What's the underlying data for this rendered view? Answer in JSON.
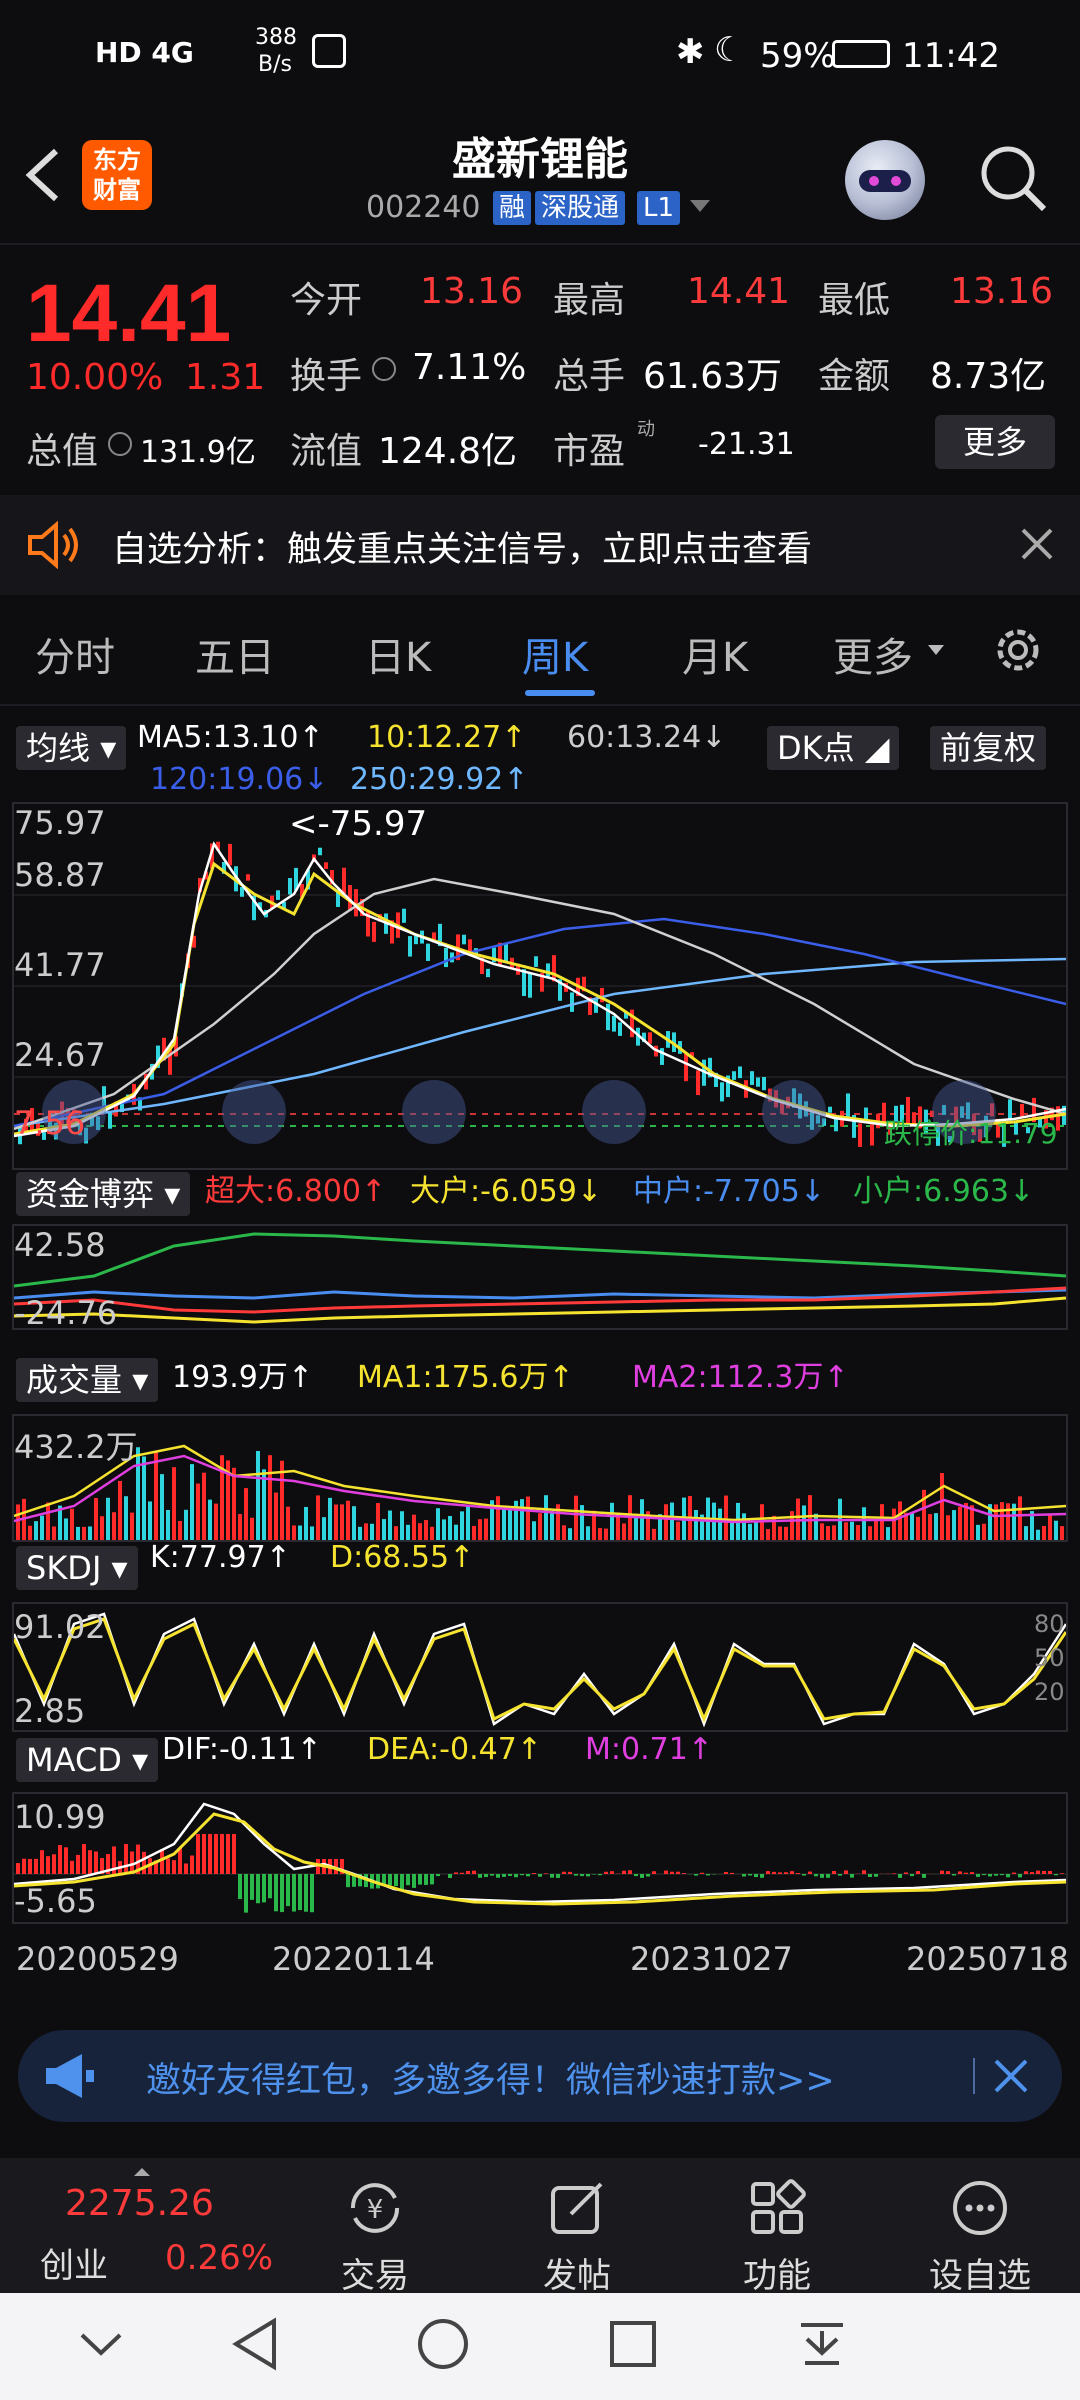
{
  "status_bar": {
    "left_icons": "HD 4G",
    "net_speed": "388",
    "net_unit": "B/s",
    "battery": "59%",
    "time": "11:42"
  },
  "header": {
    "logo_line1": "东方",
    "logo_line2": "财富",
    "stock_name": "盛新锂能",
    "stock_code": "002240",
    "tags": [
      "融",
      "深股通",
      "L1"
    ]
  },
  "quote": {
    "price": "14.41",
    "change_pct": "10.00%",
    "change_abs": "1.31",
    "row1": [
      {
        "label": "今开",
        "value": "13.16"
      },
      {
        "label": "最高",
        "value": "14.41"
      },
      {
        "label": "最低",
        "value": "13.16"
      }
    ],
    "row2": [
      {
        "label": "换手",
        "value": "7.11%"
      },
      {
        "label": "总手",
        "value": "61.63万"
      },
      {
        "label": "金额",
        "value": "8.73亿"
      }
    ],
    "row3": [
      {
        "label": "总值",
        "value": "131.9亿"
      },
      {
        "label": "流值",
        "value": "124.8亿"
      },
      {
        "label": "市盈",
        "value": "-21.31"
      }
    ],
    "pe_superscript": "动",
    "more_button": "更多"
  },
  "banner": {
    "text": "自选分析：触发重点关注信号，立即点击查看"
  },
  "tabs": [
    "分时",
    "五日",
    "日K",
    "周K",
    "月K",
    "更多"
  ],
  "active_tab": 3,
  "kline": {
    "ma_chip": "均线",
    "ma5": "MA5:13.10↑",
    "ma10": "10:12.27↑",
    "ma60": "60:13.24↓",
    "ma120": "120:19.06↓",
    "ma250": "250:29.92↑",
    "dk_button": "DK点",
    "adjust_button": "前复权",
    "y_ticks": [
      "75.97",
      "58.87",
      "41.77",
      "24.67",
      "7.56"
    ],
    "peak_label": "<-75.97",
    "limit_label": "跌停价:11.79"
  },
  "capital": {
    "chip": "资金博弈",
    "super": "超大:6.800↑",
    "large": "大户:-6.059↓",
    "mid": "中户:-7.705↓",
    "small": "小户:6.963↓",
    "y_ticks": [
      "42.58",
      "-24.76"
    ]
  },
  "volume": {
    "chip": "成交量",
    "value": "193.9万↑",
    "ma1": "MA1:175.6万↑",
    "ma2": "MA2:112.3万↑",
    "y_tick": "432.2万"
  },
  "skdj": {
    "chip": "SKDJ",
    "k": "K:77.97↑",
    "d": "D:68.55↑",
    "y_ticks": [
      "91.02",
      "2.85"
    ],
    "right_ticks": [
      "80",
      "50",
      "20"
    ]
  },
  "macd": {
    "chip": "MACD",
    "dif": "DIF:-0.11↑",
    "dea": "DEA:-0.47↑",
    "m": "M:0.71↑",
    "y_ticks": [
      "10.99",
      "-5.65"
    ]
  },
  "x_dates": [
    "20200529",
    "20220114",
    "20231027",
    "20250718"
  ],
  "invite": {
    "text": "邀好友得红包，多邀多得！微信秒速打款>>"
  },
  "bottom_nav": {
    "index_value": "2275.26",
    "index_name": "创业",
    "index_change": "0.26%",
    "items": [
      "交易",
      "发帖",
      "功能",
      "设自选"
    ]
  },
  "colors": {
    "up": "#ff2a2a",
    "accent_blue": "#4a8df0",
    "ma5_white": "#ffffff",
    "ma10_yellow": "#f5e330",
    "ma120_blue": "#3a5ee8",
    "ma250_lightblue": "#6fb7ff",
    "green": "#2bb84a",
    "magenta": "#e03fe0"
  }
}
